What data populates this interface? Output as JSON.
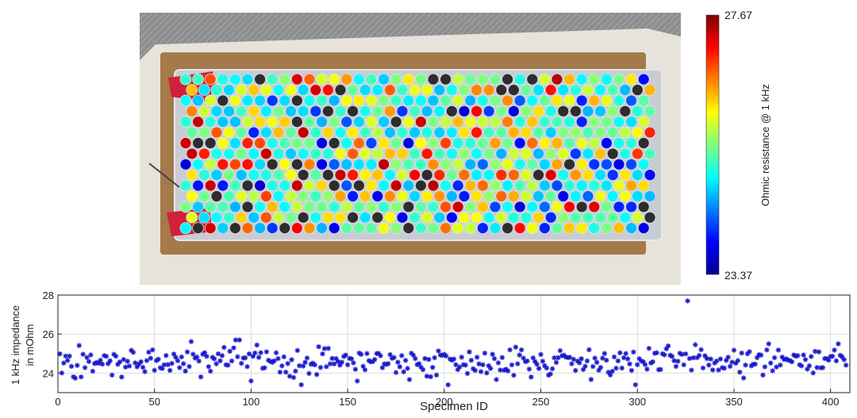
{
  "colorbar": {
    "max_label": "27.67",
    "min_label": "23.37",
    "title": "Ohmic resistance @ 1 kHz",
    "min": 23.37,
    "max": 27.67
  },
  "chart_data": {
    "type": "scatter",
    "xlabel": "Specimen ID",
    "ylabel_lines": [
      "1 kHz impedance",
      "in mOhm"
    ],
    "xlim": [
      0,
      410
    ],
    "ylim": [
      23,
      28
    ],
    "xticks": [
      0,
      50,
      100,
      150,
      200,
      250,
      300,
      350,
      400
    ],
    "yticks": [
      24,
      26,
      28
    ],
    "grid": true,
    "marker": "*",
    "marker_color": "#1a1acc",
    "outliers": [
      {
        "x": 326,
        "y": 27.7
      },
      {
        "x": 92,
        "y": 25.7
      },
      {
        "x": 94,
        "y": 25.7
      },
      {
        "x": 100,
        "y": 23.6
      },
      {
        "x": 126,
        "y": 23.4
      },
      {
        "x": 202,
        "y": 23.4
      },
      {
        "x": 299,
        "y": 23.4
      },
      {
        "x": 33,
        "y": 23.8
      },
      {
        "x": 28,
        "y": 23.9
      },
      {
        "x": 196,
        "y": 23.9
      },
      {
        "x": 245,
        "y": 23.8
      },
      {
        "x": 368,
        "y": 25.5
      },
      {
        "x": 404,
        "y": 25.5
      }
    ]
  }
}
